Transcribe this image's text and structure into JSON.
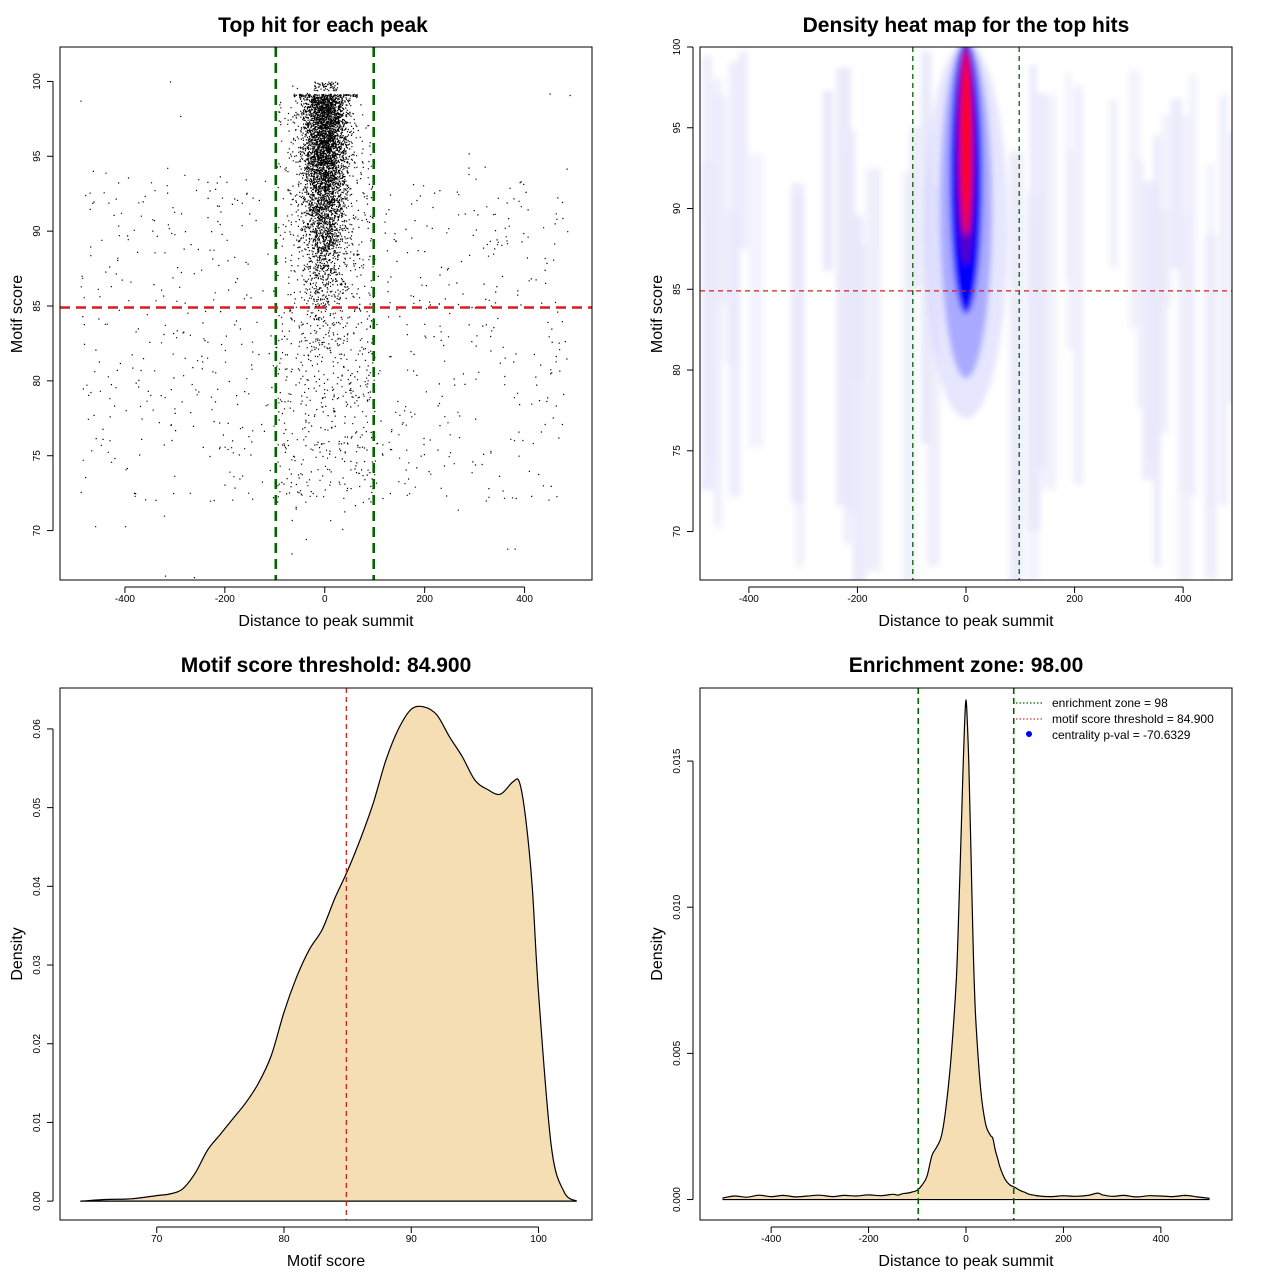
{
  "colors": {
    "vline": "#006400",
    "hline": "#d61f1f",
    "fill": "#f5deb3",
    "point": "#000000",
    "heat_low": "#ffffff",
    "heat_mid": "#0000ff",
    "heat_high": "#ff0000",
    "legend_dot": "#0000ff"
  },
  "chart_data": [
    {
      "id": "scatter",
      "type": "scatter",
      "title": "Top hit for each peak",
      "xlabel": "Distance to peak summit",
      "ylabel": "Motif score",
      "xlim": [
        -530,
        535
      ],
      "ylim": [
        66.7,
        102.3
      ],
      "xticks": [
        -400,
        -200,
        0,
        200,
        400
      ],
      "yticks": [
        70,
        75,
        80,
        85,
        90,
        95,
        100
      ],
      "vlines": [
        -98,
        98
      ],
      "hline": 84.9,
      "points_note": "Approximately 6000 peaks: dense core around distance 0 (|x| < 100) with scores 78-100; sparse uniform background from -490 to 490 with scores 67-100"
    },
    {
      "id": "heatmap",
      "type": "heatmap",
      "title": "Density heat map for the top hits",
      "xlabel": "Distance to peak summit",
      "ylabel": "Motif score",
      "xlim": [
        -490,
        490
      ],
      "ylim": [
        67,
        100
      ],
      "xticks": [
        -400,
        -200,
        0,
        200,
        400
      ],
      "yticks": [
        70,
        75,
        80,
        85,
        90,
        95,
        100
      ],
      "vlines": [
        -98,
        98
      ],
      "hline": 84.9,
      "peak": {
        "x": 0,
        "y_range": [
          85,
          100
        ],
        "max_at": 95
      }
    },
    {
      "id": "score-density",
      "type": "area",
      "title": "Motif score threshold: 84.900",
      "xlabel": "Motif score",
      "ylabel": "Density",
      "xlim": [
        62.4,
        104.2
      ],
      "ylim": [
        -0.0024,
        0.0652
      ],
      "xticks": [
        70,
        80,
        90,
        100
      ],
      "yticks": [
        0.0,
        0.01,
        0.02,
        0.03,
        0.04,
        0.05,
        0.06
      ],
      "ytick_labels": [
        "0.00",
        "0.01",
        "0.02",
        "0.03",
        "0.04",
        "0.05",
        "0.06"
      ],
      "vline": 84.9,
      "x": [
        64,
        66,
        68,
        70,
        71,
        72,
        73,
        74,
        75,
        76,
        77,
        78,
        79,
        80,
        81,
        82,
        83,
        84,
        85,
        86,
        87,
        88,
        89,
        90,
        91,
        92,
        93,
        94,
        95,
        96,
        97,
        98,
        98.5,
        99,
        99.5,
        100,
        101,
        102,
        103
      ],
      "y": [
        0.0,
        0.0002,
        0.0003,
        0.0007,
        0.0009,
        0.0015,
        0.0035,
        0.0065,
        0.0085,
        0.0105,
        0.0125,
        0.015,
        0.0185,
        0.024,
        0.0285,
        0.032,
        0.0345,
        0.0385,
        0.042,
        0.046,
        0.0505,
        0.056,
        0.06,
        0.0625,
        0.0628,
        0.0618,
        0.059,
        0.0565,
        0.0535,
        0.0523,
        0.0517,
        0.0533,
        0.0532,
        0.0485,
        0.04,
        0.0265,
        0.007,
        0.0012,
        0.0
      ]
    },
    {
      "id": "distance-density",
      "type": "area",
      "title": "Enrichment zone: 98.00",
      "xlabel": "Distance to peak summit",
      "ylabel": "Density",
      "xlim": [
        -546,
        546
      ],
      "ylim": [
        -0.0007,
        0.0175
      ],
      "xticks": [
        -400,
        -200,
        0,
        200,
        400
      ],
      "yticks": [
        0.0,
        0.005,
        0.01,
        0.015
      ],
      "ytick_labels": [
        "0.000",
        "0.005",
        "0.010",
        "0.015"
      ],
      "vlines": [
        -98,
        98
      ],
      "x": [
        -500,
        -475,
        -450,
        -425,
        -400,
        -375,
        -350,
        -325,
        -300,
        -275,
        -250,
        -225,
        -200,
        -175,
        -150,
        -140,
        -130,
        -120,
        -110,
        -100,
        -90,
        -80,
        -70,
        -60,
        -50,
        -40,
        -30,
        -20,
        -15,
        -10,
        -6,
        -3,
        0,
        3,
        6,
        10,
        15,
        20,
        30,
        40,
        50,
        55,
        60,
        65,
        70,
        80,
        90,
        100,
        110,
        120,
        130,
        140,
        150,
        175,
        200,
        225,
        250,
        270,
        280,
        300,
        325,
        350,
        375,
        400,
        425,
        450,
        475,
        500
      ],
      "y": [
        5e-05,
        0.00012,
        8e-05,
        0.00015,
        0.0001,
        0.00014,
        9e-05,
        0.00012,
        0.00015,
        0.0001,
        0.00014,
        0.00012,
        0.00016,
        0.00013,
        0.00018,
        0.00015,
        0.0002,
        0.00022,
        0.00026,
        0.00032,
        0.0005,
        0.0008,
        0.0015,
        0.0018,
        0.0022,
        0.0033,
        0.005,
        0.0075,
        0.0098,
        0.0125,
        0.0148,
        0.0162,
        0.0171,
        0.0162,
        0.0148,
        0.012,
        0.0085,
        0.0062,
        0.0038,
        0.0026,
        0.0022,
        0.0021,
        0.0017,
        0.0014,
        0.0011,
        0.0007,
        0.0005,
        0.00042,
        0.00032,
        0.00025,
        0.00018,
        0.00015,
        0.00012,
        0.0001,
        0.00013,
        0.00011,
        0.00014,
        0.00022,
        0.00016,
        0.00011,
        0.00014,
        9e-05,
        0.00013,
        0.00012,
        0.0001,
        0.00014,
        9e-05,
        4e-05
      ],
      "legend": [
        {
          "kind": "dotted-line",
          "color": "#006400",
          "label": "enrichment zone = 98"
        },
        {
          "kind": "dotted-line",
          "color": "#e03030",
          "label": "motif score threshold = 84.900"
        },
        {
          "kind": "dot",
          "color": "#0000ff",
          "label": "centrality p-val = -70.6329"
        }
      ]
    }
  ]
}
